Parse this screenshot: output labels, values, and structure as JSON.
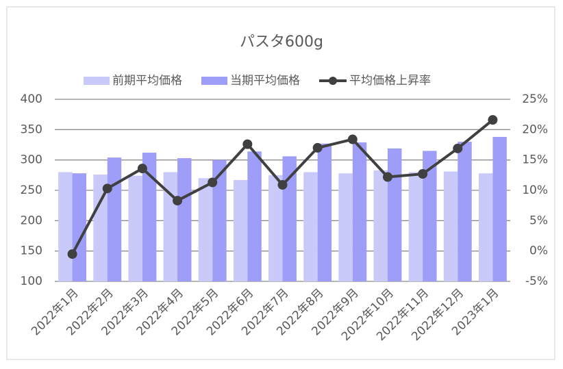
{
  "chart_data": {
    "type": "bar-line",
    "title": "パスタ600g",
    "categories": [
      "2022年1月",
      "2022年2月",
      "2022年3月",
      "2022年4月",
      "2022年5月",
      "2022年6月",
      "2022年7月",
      "2022年8月",
      "2022年9月",
      "2022年10月",
      "2022年11月",
      "2022年12月",
      "2023年1月"
    ],
    "series": [
      {
        "name": "前期平均価格",
        "color": "#cacafa",
        "values": [
          280,
          276,
          274,
          280,
          270,
          267,
          275,
          280,
          278,
          283,
          280,
          281,
          278
        ]
      },
      {
        "name": "当期平均価格",
        "color": "#9e9ef8",
        "values": [
          278,
          304,
          312,
          303,
          300,
          314,
          306,
          327,
          329,
          319,
          315,
          330,
          338
        ]
      },
      {
        "name": "平均価格上昇率",
        "color": "#404040",
        "axis": "y2",
        "values": [
          -0.5,
          10.3,
          13.6,
          8.3,
          11.3,
          17.6,
          10.9,
          17.0,
          18.4,
          12.2,
          12.7,
          16.9,
          21.6
        ]
      }
    ],
    "ylim": [
      100,
      400
    ],
    "yticks": [
      100,
      150,
      200,
      250,
      300,
      350,
      400
    ],
    "y2lim": [
      -5,
      25
    ],
    "y2ticks": [
      {
        "value": -5,
        "label": "-5%"
      },
      {
        "value": 0,
        "label": "0%"
      },
      {
        "value": 5,
        "label": "5%"
      },
      {
        "value": 10,
        "label": "10%"
      },
      {
        "value": 15,
        "label": "15%"
      },
      {
        "value": 20,
        "label": "20%"
      },
      {
        "value": 25,
        "label": "25%"
      }
    ],
    "grid": true,
    "legend": "top"
  }
}
